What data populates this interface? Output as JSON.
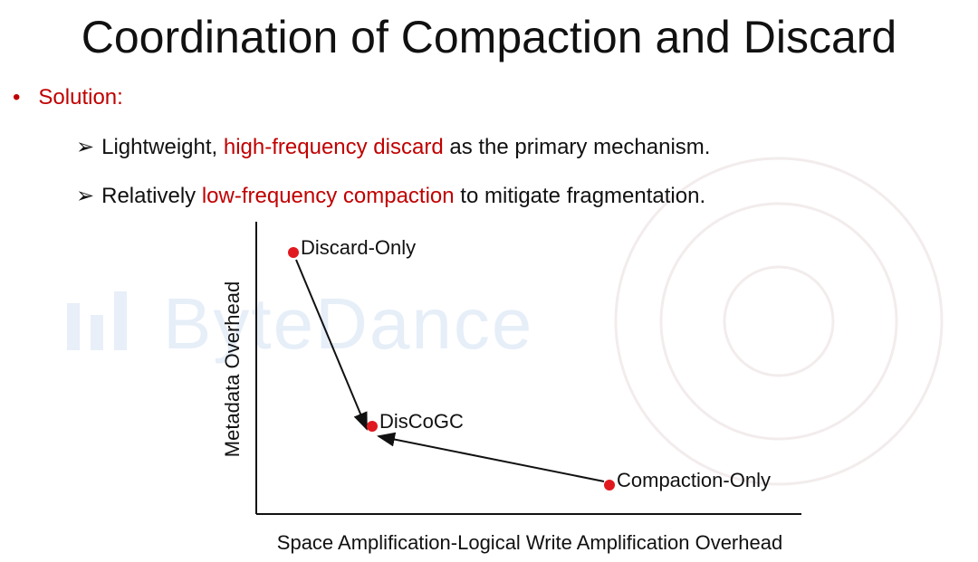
{
  "header": {
    "title": "Coordination of Compaction and Discard"
  },
  "watermark": "ByteDance",
  "bullets": [
    {
      "text": "Solution:",
      "subitems": [
        {
          "parts": [
            {
              "text": "Lightweight, ",
              "emphasis": false
            },
            {
              "text": "high-frequency discard",
              "emphasis": true
            },
            {
              "text": " as the primary mechanism.",
              "emphasis": false
            }
          ]
        },
        {
          "parts": [
            {
              "text": "Relatively ",
              "emphasis": false
            },
            {
              "text": "low-frequency compaction",
              "emphasis": true
            },
            {
              "text": " to mitigate fragmentation.",
              "emphasis": false
            }
          ]
        }
      ]
    }
  ],
  "diagram": {
    "y_axis_label": "Metadata Overhead",
    "x_axis_label": "Space Amplification-Logical Write Amplification Overhead",
    "nodes": [
      {
        "label": "Discard-Only"
      },
      {
        "label": "DisCoGC"
      },
      {
        "label": "Compaction-Only"
      }
    ]
  }
}
